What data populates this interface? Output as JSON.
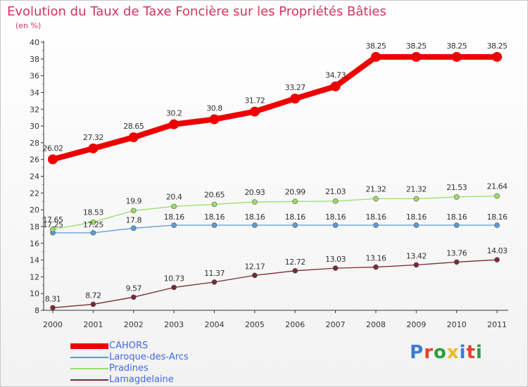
{
  "header": {
    "title": "Evolution du Taux de Taxe Foncière sur les Propriétés Bâties",
    "unit": "(en %)"
  },
  "brand": {
    "name": "Proxiti",
    "letter_colors": [
      "#3a7bd5",
      "#e8412c",
      "#2b9e3a",
      "#f2b824",
      "#3a7bd5",
      "#e8412c",
      "#2b9e3a"
    ]
  },
  "chart_data": {
    "type": "line",
    "title": "Evolution du Taux de Taxe Foncière sur les Propriétés Bâties",
    "ylabel": "(en %)",
    "x": [
      "2000",
      "2001",
      "2002",
      "2003",
      "2004",
      "2005",
      "2006",
      "2007",
      "2008",
      "2009",
      "2010",
      "2011"
    ],
    "ylim": [
      8,
      40
    ],
    "yticks": [
      8,
      10,
      12,
      14,
      16,
      18,
      20,
      22,
      24,
      26,
      28,
      30,
      32,
      34,
      36,
      38,
      40
    ],
    "grid": false,
    "legend_position": "bottom-left",
    "series": [
      {
        "name": "CAHORS",
        "color": "#ee0000",
        "values": [
          26.02,
          27.32,
          28.65,
          30.2,
          30.8,
          31.72,
          33.27,
          34.73,
          38.25,
          38.25,
          38.25,
          38.25
        ],
        "labels": [
          "26.02",
          "27.32",
          "28.65",
          "30.2",
          "30.8",
          "31.72",
          "33.27",
          "34.73",
          "38.25",
          "38.25",
          "38.25",
          "38.25"
        ]
      },
      {
        "name": "Laroque-des-Arcs",
        "color": "#5b9bd5",
        "values": [
          17.25,
          17.25,
          17.8,
          18.16,
          18.16,
          18.16,
          18.16,
          18.16,
          18.16,
          18.16,
          18.16,
          18.16
        ],
        "labels": [
          "17.25",
          "17.25",
          "17.8",
          "18.16",
          "18.16",
          "18.16",
          "18.16",
          "18.16",
          "18.16",
          "18.16",
          "18.16",
          "18.16"
        ]
      },
      {
        "name": "Pradines",
        "color": "#99dd66",
        "values": [
          17.65,
          18.53,
          19.9,
          20.4,
          20.65,
          20.93,
          20.99,
          21.03,
          21.32,
          21.32,
          21.53,
          21.64
        ],
        "labels": [
          "17.65",
          "18.53",
          "19.9",
          "20.4",
          "20.65",
          "20.93",
          "20.99",
          "21.03",
          "21.32",
          "21.32",
          "21.53",
          "21.64"
        ]
      },
      {
        "name": "Lamagdelaine",
        "color": "#7a2a35",
        "values": [
          8.31,
          8.72,
          9.57,
          10.73,
          11.37,
          12.17,
          12.72,
          13.03,
          13.16,
          13.42,
          13.76,
          14.03
        ],
        "labels": [
          "8.31",
          "8.72",
          "9.57",
          "10.73",
          "11.37",
          "12.17",
          "12.72",
          "13.03",
          "13.16",
          "13.42",
          "13.76",
          "14.03"
        ]
      }
    ]
  }
}
